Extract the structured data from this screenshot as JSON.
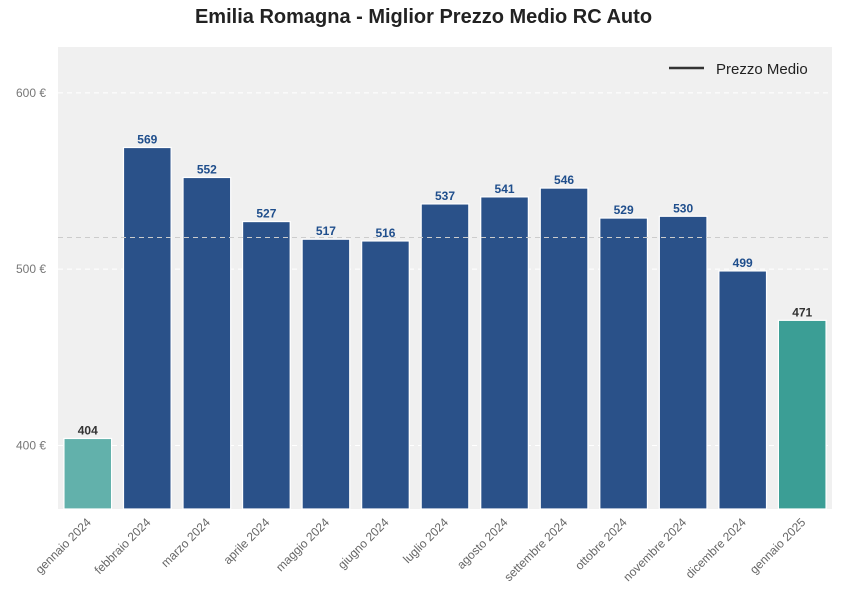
{
  "chart_data": {
    "type": "bar",
    "title": "Emilia Romagna - Miglior Prezzo Medio RC Auto",
    "xlabel": "",
    "ylabel": "",
    "categories": [
      "gennaio 2024",
      "febbraio 2024",
      "marzo 2024",
      "aprile 2024",
      "maggio 2024",
      "giugno 2024",
      "luglio 2024",
      "agosto 2024",
      "settembre 2024",
      "ottobre 2024",
      "novembre 2024",
      "dicembre 2024",
      "gennaio 2025"
    ],
    "values": [
      404,
      569,
      552,
      527,
      517,
      516,
      537,
      541,
      546,
      529,
      530,
      499,
      471
    ],
    "ylim": [
      364,
      626
    ],
    "yticks": [
      400,
      500,
      600
    ],
    "ytick_labels": [
      "400 €",
      "500 €",
      "600 €"
    ],
    "reference_line": {
      "name": "Prezzo Medio",
      "value": 518
    },
    "legend": {
      "entries": [
        "Prezzo Medio"
      ],
      "position": "top-right"
    },
    "grid": true,
    "colors": {
      "bar": "#2a5189",
      "bar_first": "#62b1ab",
      "bar_last": "#3b9e95",
      "label": "#1f4e8c",
      "label_highlight": "#333333",
      "background": "#f0f0f0",
      "reference": "#cccccc",
      "legend_line": "#333333"
    }
  }
}
